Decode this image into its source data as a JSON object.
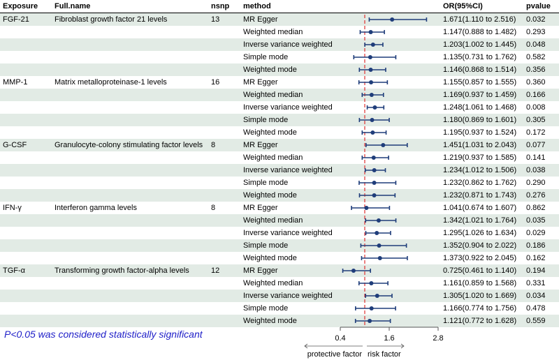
{
  "table": {
    "headers": {
      "exposure": "Exposure",
      "fullname": "Full.name",
      "nsnp": "nsnp",
      "method": "method",
      "or": "OR(95%CI)",
      "pvalue": "pvalue"
    },
    "groups": [
      {
        "exposure": "FGF-21",
        "fullname": "Fibroblast growth factor 21 levels",
        "nsnp": "13",
        "rows": [
          {
            "method": "MR Egger",
            "or_text": "1.671(1.110 to 2.516)",
            "p": "0.032",
            "or": 1.671,
            "lo": 1.11,
            "hi": 2.516
          },
          {
            "method": "Weighted median",
            "or_text": "1.147(0.888 to 1.482)",
            "p": "0.293",
            "or": 1.147,
            "lo": 0.888,
            "hi": 1.482
          },
          {
            "method": "Inverse variance weighted",
            "or_text": "1.203(1.002 to 1.445)",
            "p": "0.048",
            "or": 1.203,
            "lo": 1.002,
            "hi": 1.445
          },
          {
            "method": "Simple mode",
            "or_text": "1.135(0.731 to 1.762)",
            "p": "0.582",
            "or": 1.135,
            "lo": 0.731,
            "hi": 1.762
          },
          {
            "method": "Weighted mode",
            "or_text": "1.146(0.868 to 1.514)",
            "p": "0.356",
            "or": 1.146,
            "lo": 0.868,
            "hi": 1.514
          }
        ]
      },
      {
        "exposure": "MMP-1",
        "fullname": "Matrix metalloproteinase-1 levels",
        "nsnp": "16",
        "rows": [
          {
            "method": "MR Egger",
            "or_text": "1.155(0.857 to 1.555)",
            "p": "0.360",
            "or": 1.155,
            "lo": 0.857,
            "hi": 1.555
          },
          {
            "method": "Weighted median",
            "or_text": "1.169(0.937 to 1.459)",
            "p": "0.166",
            "or": 1.169,
            "lo": 0.937,
            "hi": 1.459
          },
          {
            "method": "Inverse variance weighted",
            "or_text": "1.248(1.061 to 1.468)",
            "p": "0.008",
            "or": 1.248,
            "lo": 1.061,
            "hi": 1.468
          },
          {
            "method": "Simple mode",
            "or_text": "1.180(0.869 to 1.601)",
            "p": "0.305",
            "or": 1.18,
            "lo": 0.869,
            "hi": 1.601
          },
          {
            "method": "Weighted mode",
            "or_text": "1.195(0.937 to 1.524)",
            "p": "0.172",
            "or": 1.195,
            "lo": 0.937,
            "hi": 1.524
          }
        ]
      },
      {
        "exposure": "G-CSF",
        "fullname": "Granulocyte-colony stimulating factor levels",
        "nsnp": "8",
        "rows": [
          {
            "method": "MR Egger",
            "or_text": "1.451(1.031 to 2.043)",
            "p": "0.077",
            "or": 1.451,
            "lo": 1.031,
            "hi": 2.043
          },
          {
            "method": "Weighted median",
            "or_text": "1.219(0.937 to 1.585)",
            "p": "0.141",
            "or": 1.219,
            "lo": 0.937,
            "hi": 1.585
          },
          {
            "method": "Inverse variance weighted",
            "or_text": "1.234(1.012 to 1.506)",
            "p": "0.038",
            "or": 1.234,
            "lo": 1.012,
            "hi": 1.506
          },
          {
            "method": "Simple mode",
            "or_text": "1.232(0.862 to 1.762)",
            "p": "0.290",
            "or": 1.232,
            "lo": 0.862,
            "hi": 1.762
          },
          {
            "method": "Weighted mode",
            "or_text": "1.232(0.871 to 1.743)",
            "p": "0.276",
            "or": 1.232,
            "lo": 0.871,
            "hi": 1.743
          }
        ]
      },
      {
        "exposure": "IFN-γ",
        "fullname": "Interferon gamma levels",
        "nsnp": "8",
        "rows": [
          {
            "method": "MR Egger",
            "or_text": "1.041(0.674 to 1.607)",
            "p": "0.862",
            "or": 1.041,
            "lo": 0.674,
            "hi": 1.607
          },
          {
            "method": "Weighted median",
            "or_text": "1.342(1.021 to 1.764)",
            "p": "0.035",
            "or": 1.342,
            "lo": 1.021,
            "hi": 1.764
          },
          {
            "method": "Inverse variance weighted",
            "or_text": "1.295(1.026 to 1.634)",
            "p": "0.029",
            "or": 1.295,
            "lo": 1.026,
            "hi": 1.634
          },
          {
            "method": "Simple mode",
            "or_text": "1.352(0.904 to 2.022)",
            "p": "0.186",
            "or": 1.352,
            "lo": 0.904,
            "hi": 2.022
          },
          {
            "method": "Weighted mode",
            "or_text": "1.373(0.922 to 2.045)",
            "p": "0.162",
            "or": 1.373,
            "lo": 0.922,
            "hi": 2.045
          }
        ]
      },
      {
        "exposure": "TGF-α",
        "fullname": "Transforming growth factor-alpha levels",
        "nsnp": "12",
        "rows": [
          {
            "method": "MR Egger",
            "or_text": "0.725(0.461 to 1.140)",
            "p": "0.194",
            "or": 0.725,
            "lo": 0.461,
            "hi": 1.14
          },
          {
            "method": "Weighted median",
            "or_text": "1.161(0.859 to 1.568)",
            "p": "0.331",
            "or": 1.161,
            "lo": 0.859,
            "hi": 1.568
          },
          {
            "method": "Inverse variance weighted",
            "or_text": "1.305(1.020 to 1.669)",
            "p": "0.034",
            "or": 1.305,
            "lo": 1.02,
            "hi": 1.669
          },
          {
            "method": "Simple mode",
            "or_text": "1.166(0.774 to 1.756)",
            "p": "0.478",
            "or": 1.166,
            "lo": 0.774,
            "hi": 1.756
          },
          {
            "method": "Weighted mode",
            "or_text": "1.121(0.772 to 1.628)",
            "p": "0.559",
            "or": 1.121,
            "lo": 0.772,
            "hi": 1.628
          }
        ]
      }
    ]
  },
  "chart_data": {
    "type": "forest",
    "xlim": [
      0.4,
      2.8
    ],
    "ticks": [
      0.4,
      1.6,
      2.8
    ],
    "tick_labels": [
      "0.4",
      "1.6",
      "2.8"
    ],
    "reference_line": 1.0,
    "protective_label": "protective factor",
    "risk_label": "risk factor"
  },
  "note": "P<0.05 was considered statistically significant",
  "colors": {
    "shade": "#e2ebe5",
    "point": "#1f3d7a",
    "ref_line": "#e03030",
    "note": "#1e1ec8"
  }
}
